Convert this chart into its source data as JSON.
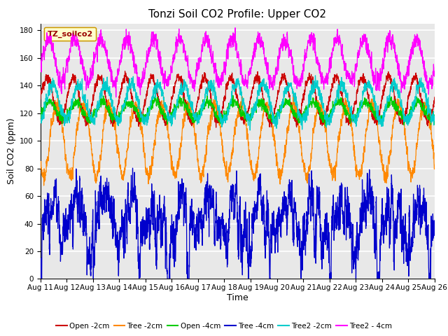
{
  "title": "Tonzi Soil CO2 Profile: Upper CO2",
  "xlabel": "Time",
  "ylabel": "Soil CO2 (ppm)",
  "ylim": [
    0,
    185
  ],
  "yticks": [
    0,
    20,
    40,
    60,
    80,
    100,
    120,
    140,
    160,
    180
  ],
  "x_start_day": 11,
  "x_end_day": 26,
  "x_tick_days": [
    11,
    12,
    13,
    14,
    15,
    16,
    17,
    18,
    19,
    20,
    21,
    22,
    23,
    24,
    25,
    26
  ],
  "x_tick_labels": [
    "Aug 11",
    "Aug 12",
    "Aug 13",
    "Aug 14",
    "Aug 15",
    "Aug 16",
    "Aug 17",
    "Aug 18",
    "Aug 19",
    "Aug 20",
    "Aug 21",
    "Aug 22",
    "Aug 23",
    "Aug 24",
    "Aug 25",
    "Aug 26"
  ],
  "legend_label": "TZ_soilco2",
  "legend_bg": "#ffffcc",
  "legend_border": "#cc9900",
  "legend_text_color": "#990000",
  "bg_color": "#ffffff",
  "plot_bg_color": "#e8e8e8",
  "grid_color": "#ffffff",
  "title_fontsize": 11,
  "axis_label_fontsize": 9,
  "tick_fontsize": 7.5,
  "legend_fontsize": 8,
  "n_points": 3600,
  "series": [
    {
      "label": "Open -2cm",
      "color": "#cc0000",
      "base": 130,
      "amp": 16,
      "phase": 0.0,
      "noise": 3,
      "zorder": 5,
      "lw": 0.9
    },
    {
      "label": "Tree -2cm",
      "color": "#ff8800",
      "base": 105,
      "amp": 30,
      "phase": 0.38,
      "noise": 4,
      "zorder": 4,
      "lw": 0.9
    },
    {
      "label": "Open -4cm",
      "color": "#00cc00",
      "base": 122,
      "amp": 6,
      "phase": 0.12,
      "noise": 3,
      "zorder": 6,
      "lw": 0.9
    },
    {
      "label": "Tree -4cm",
      "color": "#0000cc",
      "base": 50,
      "amp": 14,
      "phase": 0.18,
      "noise": 10,
      "zorder": 3,
      "lw": 0.9
    },
    {
      "label": "Tree2 -2cm",
      "color": "#00cccc",
      "base": 128,
      "amp": 13,
      "phase": 0.22,
      "noise": 4,
      "zorder": 7,
      "lw": 0.9
    },
    {
      "label": "Tree2 - 4cm",
      "color": "#ff00ff",
      "base": 158,
      "amp": 16,
      "phase": 0.06,
      "noise": 5,
      "zorder": 8,
      "lw": 0.9
    }
  ]
}
